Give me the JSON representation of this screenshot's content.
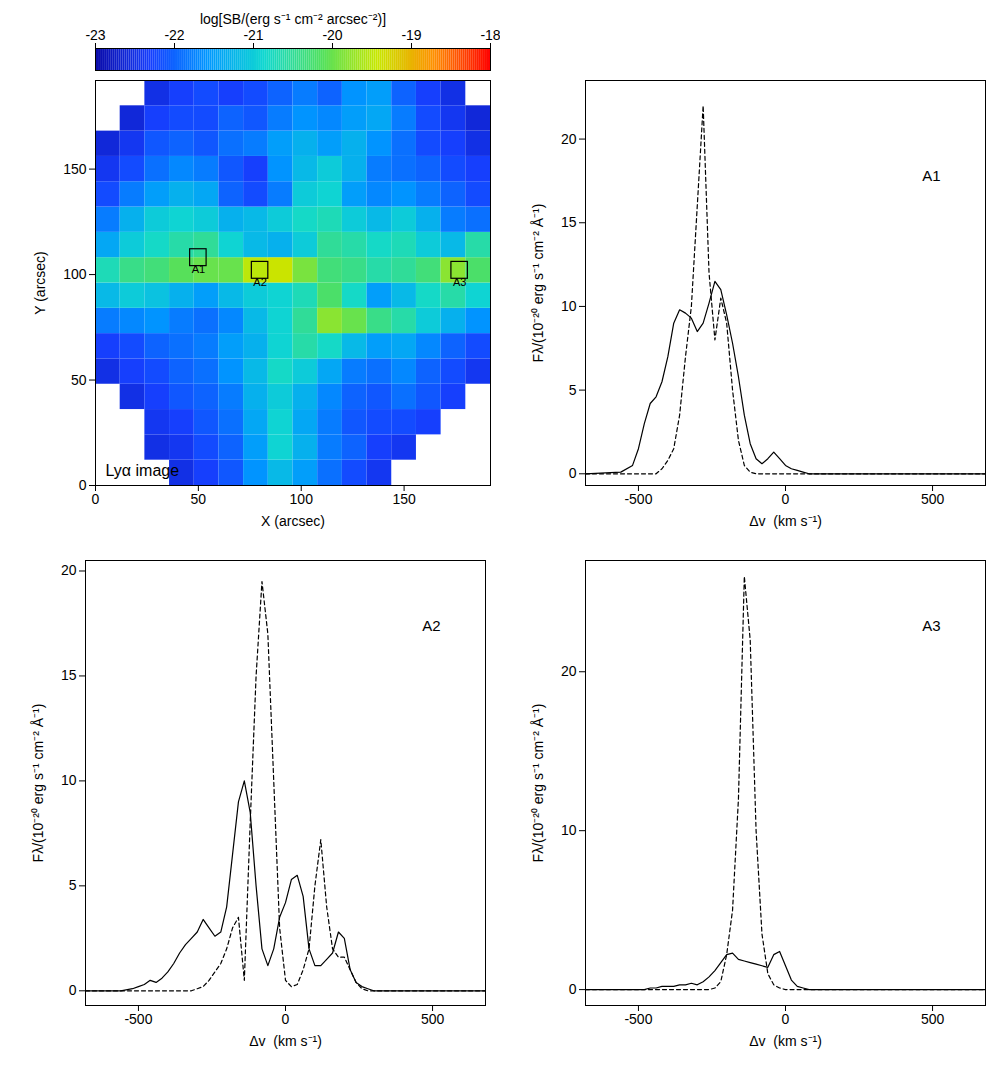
{
  "chart_data": [
    {
      "type": "heatmap",
      "x_label": "X (arcsec)",
      "y_label": "Y (arcsec)",
      "xlim": [
        0,
        192
      ],
      "ylim": [
        0,
        192
      ],
      "xticks": [
        0,
        50,
        100,
        150
      ],
      "yticks": [
        0,
        50,
        100,
        150
      ],
      "x_edges": [
        0,
        12,
        24,
        36,
        48,
        60,
        72,
        84,
        96,
        108,
        120,
        132,
        144,
        156,
        168,
        180,
        192
      ],
      "y_edges": [
        0,
        12,
        24,
        36,
        48,
        60,
        72,
        84,
        96,
        108,
        120,
        132,
        144,
        156,
        168,
        180,
        192
      ],
      "values": [
        [
          null,
          null,
          null,
          -22.5,
          -22.3,
          -22.1,
          -21.6,
          -21.2,
          -21.5,
          -21.9,
          -22.2,
          -22.4,
          null,
          null,
          null,
          null
        ],
        [
          null,
          null,
          -22.5,
          -22.4,
          -22.2,
          -22.0,
          -21.5,
          -20.9,
          -21.3,
          -21.8,
          -22.0,
          -22.3,
          -22.4,
          null,
          null,
          null
        ],
        [
          null,
          null,
          -22.4,
          -22.3,
          -22.1,
          -21.9,
          -21.4,
          -20.9,
          -21.4,
          -21.8,
          -22.1,
          -22.2,
          -22.2,
          -22.3,
          null,
          null
        ],
        [
          null,
          -22.5,
          -22.3,
          -22.1,
          -22.0,
          -21.8,
          -21.3,
          -21.0,
          -21.3,
          -21.7,
          -22.0,
          -22.1,
          -21.9,
          -22.1,
          -22.3,
          null
        ],
        [
          -22.5,
          -22.3,
          -22.2,
          -22.0,
          -21.9,
          -21.6,
          -21.2,
          -20.8,
          -21.0,
          -21.4,
          -21.8,
          -21.9,
          -21.7,
          -22.0,
          -22.2,
          -22.4
        ],
        [
          -22.3,
          -22.2,
          -22.0,
          -21.9,
          -21.8,
          -21.5,
          -21.3,
          -20.9,
          -20.6,
          -20.8,
          -21.2,
          -21.5,
          -21.4,
          -21.7,
          -22.0,
          -22.2
        ],
        [
          -21.8,
          -21.7,
          -21.6,
          -21.8,
          -21.9,
          -21.7,
          -21.2,
          -20.9,
          -20.5,
          -19.8,
          -20.0,
          -20.4,
          -20.6,
          -21.0,
          -21.3,
          -21.6
        ],
        [
          -21.2,
          -21.0,
          -21.1,
          -21.3,
          -21.5,
          -21.2,
          -21.0,
          -20.9,
          -20.7,
          -20.2,
          -20.8,
          -21.5,
          -21.2,
          -20.8,
          -20.6,
          -20.9
        ],
        [
          -20.7,
          -20.4,
          -20.3,
          -20.1,
          -20.0,
          -20.0,
          -19.5,
          -19.4,
          -19.9,
          -20.3,
          -20.4,
          -20.6,
          -20.5,
          -20.3,
          -19.8,
          -20.2
        ],
        [
          -21.4,
          -21.0,
          -20.8,
          -20.6,
          -20.5,
          -20.9,
          -21.2,
          -21.3,
          -21.0,
          -20.5,
          -20.6,
          -20.8,
          -20.7,
          -21.0,
          -21.2,
          -20.6
        ],
        [
          -21.8,
          -21.3,
          -21.0,
          -20.9,
          -21.0,
          -21.3,
          -21.2,
          -21.0,
          -20.8,
          -20.7,
          -21.0,
          -21.2,
          -21.0,
          -21.3,
          -21.8,
          -21.9
        ],
        [
          -22.2,
          -21.8,
          -21.5,
          -21.3,
          -21.4,
          -22.0,
          -22.2,
          -21.8,
          -21.0,
          -20.9,
          -21.5,
          -21.7,
          -21.6,
          -21.8,
          -22.0,
          -22.2
        ],
        [
          -22.4,
          -22.2,
          -21.9,
          -21.7,
          -21.8,
          -22.1,
          -22.3,
          -21.6,
          -21.2,
          -21.0,
          -21.3,
          -21.8,
          -21.9,
          -22.0,
          -22.2,
          -22.3
        ],
        [
          -22.6,
          -22.4,
          -22.1,
          -22.0,
          -22.1,
          -21.9,
          -21.8,
          -21.5,
          -21.3,
          -21.5,
          -21.3,
          -21.6,
          -21.9,
          -22.2,
          -22.3,
          -22.5
        ],
        [
          null,
          -22.6,
          -22.3,
          -22.2,
          -22.2,
          -22.0,
          -22.1,
          -21.8,
          -21.6,
          -21.7,
          -21.5,
          -21.4,
          -21.8,
          -22.2,
          -22.4,
          -22.6
        ],
        [
          null,
          null,
          -22.5,
          -22.3,
          -22.2,
          -22.3,
          -22.2,
          -22.0,
          -21.8,
          -22.0,
          -21.6,
          -21.5,
          -22.0,
          -22.3,
          -22.5,
          null
        ]
      ],
      "colorbar": {
        "label": "log[SB/(erg s⁻¹ cm⁻² arcsec⁻²)]",
        "range": [
          -23,
          -18
        ],
        "ticks": [
          -23,
          -22,
          -21,
          -20,
          -19,
          -18
        ]
      },
      "annotations": [
        "Lyα image"
      ],
      "regions": [
        {
          "name": "A1",
          "x": 50,
          "y": 108
        },
        {
          "name": "A2",
          "x": 80,
          "y": 102
        },
        {
          "name": "A3",
          "x": 177,
          "y": 102
        }
      ]
    },
    {
      "type": "line",
      "title": "A1",
      "x_label": "Δv  (km s⁻¹)",
      "y_label": "Fλ/(10⁻²⁰ erg s⁻¹ cm⁻² Å⁻¹)",
      "xlim": [
        -680,
        680
      ],
      "xticks": [
        -500,
        0,
        500
      ],
      "ylim": [
        -0.7,
        23.5
      ],
      "yticks": [
        0,
        5,
        10,
        15,
        20
      ],
      "x": [
        -680,
        -560,
        -520,
        -500,
        -480,
        -460,
        -440,
        -420,
        -400,
        -380,
        -360,
        -340,
        -320,
        -300,
        -280,
        -260,
        -240,
        -220,
        -200,
        -180,
        -160,
        -140,
        -120,
        -100,
        -80,
        -60,
        -40,
        -20,
        0,
        20,
        40,
        60,
        80,
        100,
        120,
        140,
        160,
        180,
        200,
        220,
        240,
        260,
        280,
        300,
        680
      ],
      "series": [
        {
          "line_style": "solid",
          "color": "#000000",
          "values": [
            0,
            0.1,
            0.5,
            1.5,
            3.0,
            4.2,
            4.6,
            5.5,
            7.0,
            9.0,
            9.8,
            9.6,
            9.3,
            8.5,
            9.0,
            10.2,
            11.5,
            11.0,
            9.5,
            7.8,
            5.8,
            3.5,
            1.8,
            0.9,
            0.6,
            0.9,
            1.3,
            0.9,
            0.5,
            0.3,
            0.2,
            0.1,
            0,
            0,
            0,
            0,
            0,
            0,
            0,
            0,
            0,
            0,
            0,
            0,
            0
          ]
        },
        {
          "line_style": "dashed",
          "color": "#000000",
          "values": [
            0,
            0,
            0,
            0,
            0,
            0,
            0,
            0.3,
            0.8,
            1.5,
            3.5,
            7,
            10,
            16,
            22,
            12,
            8,
            10.5,
            9,
            5,
            2,
            0.5,
            0.1,
            0,
            0,
            0,
            0,
            0,
            0,
            0,
            0,
            0,
            0,
            0,
            0,
            0,
            0,
            0,
            0,
            0,
            0,
            0,
            0,
            0,
            0
          ]
        }
      ]
    },
    {
      "type": "line",
      "title": "A2",
      "x_label": "Δv  (km s⁻¹)",
      "y_label": "Fλ/(10⁻²⁰ erg s⁻¹ cm⁻² Å⁻¹)",
      "xlim": [
        -680,
        680
      ],
      "xticks": [
        -500,
        0,
        500
      ],
      "ylim": [
        -0.7,
        20.5
      ],
      "yticks": [
        0,
        5,
        10,
        15,
        20
      ],
      "x": [
        -680,
        -560,
        -520,
        -500,
        -480,
        -460,
        -440,
        -420,
        -400,
        -380,
        -360,
        -340,
        -320,
        -300,
        -280,
        -260,
        -240,
        -220,
        -200,
        -180,
        -160,
        -140,
        -120,
        -100,
        -80,
        -60,
        -40,
        -20,
        0,
        20,
        40,
        60,
        80,
        100,
        120,
        140,
        160,
        180,
        200,
        220,
        240,
        260,
        280,
        300,
        680
      ],
      "series": [
        {
          "line_style": "solid",
          "color": "#000000",
          "values": [
            0,
            0,
            0.1,
            0.2,
            0.3,
            0.5,
            0.4,
            0.6,
            0.9,
            1.3,
            1.8,
            2.2,
            2.5,
            2.8,
            3.4,
            3.0,
            2.6,
            2.8,
            4.0,
            6.5,
            9.0,
            10.0,
            8.5,
            5.0,
            2.0,
            1.2,
            2.0,
            3.5,
            4.2,
            5.3,
            5.5,
            4.5,
            2.0,
            1.2,
            1.2,
            1.5,
            1.8,
            2.8,
            2.5,
            1.0,
            0.4,
            0.2,
            0.1,
            0,
            0
          ]
        },
        {
          "line_style": "dashed",
          "color": "#000000",
          "values": [
            0,
            0,
            0,
            0,
            0,
            0,
            0,
            0,
            0,
            0,
            0,
            0,
            0,
            0.1,
            0.2,
            0.5,
            0.9,
            1.3,
            2.0,
            3.0,
            3.5,
            0.5,
            8,
            15,
            19.5,
            17,
            10,
            3,
            0.5,
            0.2,
            0.3,
            1.0,
            2.0,
            5.0,
            7.2,
            4.0,
            2.0,
            1.6,
            1.6,
            1.0,
            0.4,
            0.1,
            0,
            0,
            0
          ]
        }
      ]
    },
    {
      "type": "line",
      "title": "A3",
      "x_label": "Δv  (km s⁻¹)",
      "y_label": "Fλ/(10⁻²⁰ erg s⁻¹ cm⁻² Å⁻¹)",
      "xlim": [
        -680,
        680
      ],
      "xticks": [
        -500,
        0,
        500
      ],
      "ylim": [
        -1,
        27
      ],
      "yticks": [
        0,
        10,
        20
      ],
      "x": [
        -680,
        -560,
        -520,
        -500,
        -480,
        -460,
        -440,
        -420,
        -400,
        -380,
        -360,
        -340,
        -320,
        -300,
        -280,
        -260,
        -240,
        -220,
        -200,
        -180,
        -160,
        -140,
        -120,
        -100,
        -80,
        -60,
        -40,
        -20,
        0,
        20,
        40,
        60,
        80,
        100,
        120,
        140,
        160,
        180,
        200,
        220,
        240,
        260,
        280,
        300,
        680
      ],
      "series": [
        {
          "line_style": "solid",
          "color": "#000000",
          "values": [
            0,
            0,
            0,
            0,
            0,
            0.1,
            0.1,
            0.2,
            0.2,
            0.2,
            0.3,
            0.3,
            0.4,
            0.3,
            0.5,
            0.8,
            1.2,
            1.7,
            2.2,
            2.3,
            1.9,
            1.8,
            1.7,
            1.6,
            1.5,
            1.4,
            2.2,
            2.4,
            1.5,
            0.6,
            0.2,
            0.1,
            0,
            0,
            0,
            0,
            0,
            0,
            0,
            0,
            0,
            0,
            0,
            0,
            0
          ]
        },
        {
          "line_style": "dashed",
          "color": "#000000",
          "values": [
            0,
            0,
            0,
            0,
            0,
            0,
            0,
            0,
            0,
            0,
            0,
            0,
            0,
            0,
            0,
            0,
            0.1,
            0.5,
            2.2,
            5,
            12,
            26,
            22,
            10,
            3.5,
            1.0,
            0.3,
            0.1,
            0,
            0,
            0,
            0,
            0,
            0,
            0,
            0,
            0,
            0,
            0,
            0,
            0,
            0,
            0,
            0,
            0
          ]
        }
      ]
    }
  ]
}
